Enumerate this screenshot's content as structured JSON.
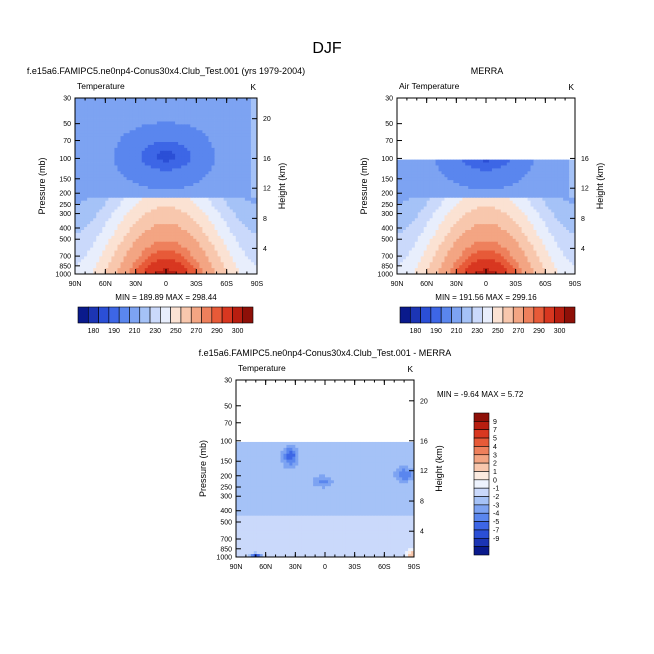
{
  "page_title": "DJF",
  "colors": {
    "temp_scale": [
      "#0a1a8c",
      "#1c35b4",
      "#2b4fd6",
      "#3d66e6",
      "#5a86ee",
      "#7da3f2",
      "#a5c2f7",
      "#cad9fb",
      "#e8eefc",
      "#fbe2d3",
      "#f8c7ad",
      "#f3a583",
      "#ee805c",
      "#e75a38",
      "#d83720",
      "#b81e10",
      "#8e1008"
    ],
    "diff_scale": [
      "#0a1a8c",
      "#1c35b4",
      "#2b4fd6",
      "#3d66e6",
      "#5a86ee",
      "#7da3f2",
      "#a5c2f7",
      "#cad9fb",
      "#eef3fd",
      "#fcebe0",
      "#f8c7ad",
      "#f3a583",
      "#ee805c",
      "#e75a38",
      "#d83720",
      "#b81e10",
      "#8e1008"
    ]
  },
  "chart_data": [
    {
      "id": "model",
      "type": "heatmap",
      "title": "f.e15a6.FAMIPC5.ne0np4-Conus30x4.Club_Test.001 (yrs 1979-2004)",
      "left_label": "Temperature",
      "right_label": "K",
      "xlabel": "",
      "ylabel": "Pressure (mb)",
      "y2label": "Height (km)",
      "xticks": [
        "90N",
        "60N",
        "30N",
        "0",
        "30S",
        "60S",
        "90S"
      ],
      "yticks": [
        {
          "p": 30,
          "label": "30"
        },
        {
          "p": 50,
          "label": "50"
        },
        {
          "p": 70,
          "label": "70"
        },
        {
          "p": 100,
          "label": "100"
        },
        {
          "p": 150,
          "label": "150"
        },
        {
          "p": 200,
          "label": "200"
        },
        {
          "p": 250,
          "label": "250"
        },
        {
          "p": 300,
          "label": "300"
        },
        {
          "p": 400,
          "label": "400"
        },
        {
          "p": 500,
          "label": "500"
        },
        {
          "p": 700,
          "label": "700"
        },
        {
          "p": 850,
          "label": "850"
        },
        {
          "p": 1000,
          "label": "1000"
        }
      ],
      "y2ticks": [
        {
          "p": 45.3,
          "label": "20"
        },
        {
          "p": 100,
          "label": "16"
        },
        {
          "p": 181,
          "label": "12"
        },
        {
          "p": 330,
          "label": "8"
        },
        {
          "p": 600,
          "label": "4"
        }
      ],
      "ylim": [
        1000,
        30
      ],
      "min": 189.89,
      "max": 298.44,
      "stats_text": "MIN = 189.89  MAX = 298.44",
      "top_pressure": 30,
      "colorbar": {
        "levels": [
          180,
          185,
          190,
          195,
          200,
          210,
          220,
          230,
          240,
          250,
          260,
          270,
          280,
          285,
          290,
          295,
          300
        ],
        "labels": [
          "180",
          "190",
          "210",
          "230",
          "250",
          "270",
          "290",
          "300"
        ]
      }
    },
    {
      "id": "obs",
      "type": "heatmap",
      "title": "MERRA",
      "left_label": "Air Temperature",
      "right_label": "K",
      "xlabel": "",
      "ylabel": "Pressure (mb)",
      "y2label": "Height (km)",
      "xticks": [
        "90N",
        "60N",
        "30N",
        "0",
        "30S",
        "60S",
        "90S"
      ],
      "yticks": [
        {
          "p": 30,
          "label": "30"
        },
        {
          "p": 50,
          "label": "50"
        },
        {
          "p": 70,
          "label": "70"
        },
        {
          "p": 100,
          "label": "100"
        },
        {
          "p": 150,
          "label": "150"
        },
        {
          "p": 200,
          "label": "200"
        },
        {
          "p": 250,
          "label": "250"
        },
        {
          "p": 300,
          "label": "300"
        },
        {
          "p": 400,
          "label": "400"
        },
        {
          "p": 500,
          "label": "500"
        },
        {
          "p": 700,
          "label": "700"
        },
        {
          "p": 850,
          "label": "850"
        },
        {
          "p": 1000,
          "label": "1000"
        }
      ],
      "y2ticks": [
        {
          "p": 100,
          "label": "16"
        },
        {
          "p": 181,
          "label": "12"
        },
        {
          "p": 330,
          "label": "8"
        },
        {
          "p": 600,
          "label": "4"
        }
      ],
      "ylim": [
        1000,
        30
      ],
      "min": 191.56,
      "max": 299.16,
      "stats_text": "MIN = 191.56  MAX = 299.16",
      "top_pressure": 100,
      "colorbar": {
        "levels": [
          180,
          185,
          190,
          195,
          200,
          210,
          220,
          230,
          240,
          250,
          260,
          270,
          280,
          285,
          290,
          295,
          300
        ],
        "labels": [
          "180",
          "190",
          "210",
          "230",
          "250",
          "270",
          "290",
          "300"
        ]
      }
    },
    {
      "id": "diff",
      "type": "heatmap",
      "title": "f.e15a6.FAMIPC5.ne0np4-Conus30x4.Club_Test.001 - MERRA",
      "left_label": "Temperature",
      "right_label": "K",
      "xlabel": "",
      "ylabel": "Pressure (mb)",
      "y2label": "Height (km)",
      "xticks": [
        "90N",
        "60N",
        "30N",
        "0",
        "30S",
        "60S",
        "90S"
      ],
      "yticks": [
        {
          "p": 30,
          "label": "30"
        },
        {
          "p": 50,
          "label": "50"
        },
        {
          "p": 70,
          "label": "70"
        },
        {
          "p": 100,
          "label": "100"
        },
        {
          "p": 150,
          "label": "150"
        },
        {
          "p": 200,
          "label": "200"
        },
        {
          "p": 250,
          "label": "250"
        },
        {
          "p": 300,
          "label": "300"
        },
        {
          "p": 400,
          "label": "400"
        },
        {
          "p": 500,
          "label": "500"
        },
        {
          "p": 700,
          "label": "700"
        },
        {
          "p": 850,
          "label": "850"
        },
        {
          "p": 1000,
          "label": "1000"
        }
      ],
      "y2ticks": [
        {
          "p": 45.3,
          "label": "20"
        },
        {
          "p": 100,
          "label": "16"
        },
        {
          "p": 181,
          "label": "12"
        },
        {
          "p": 330,
          "label": "8"
        },
        {
          "p": 600,
          "label": "4"
        }
      ],
      "ylim": [
        1000,
        30
      ],
      "min": -9.64,
      "max": 5.72,
      "stats_text": "MIN =  -9.64  MAX =   5.72",
      "top_pressure": 100,
      "colorbar": {
        "levels": [
          -9,
          -7,
          -5,
          -4,
          -3,
          -2,
          -1,
          0,
          1,
          2,
          3,
          4,
          5,
          7,
          9
        ],
        "labels": [
          "9",
          "7",
          "5",
          "4",
          "3",
          "2",
          "1",
          "0",
          "-1",
          "-2",
          "-3",
          "-4",
          "-5",
          "-7",
          "-9"
        ]
      }
    }
  ]
}
